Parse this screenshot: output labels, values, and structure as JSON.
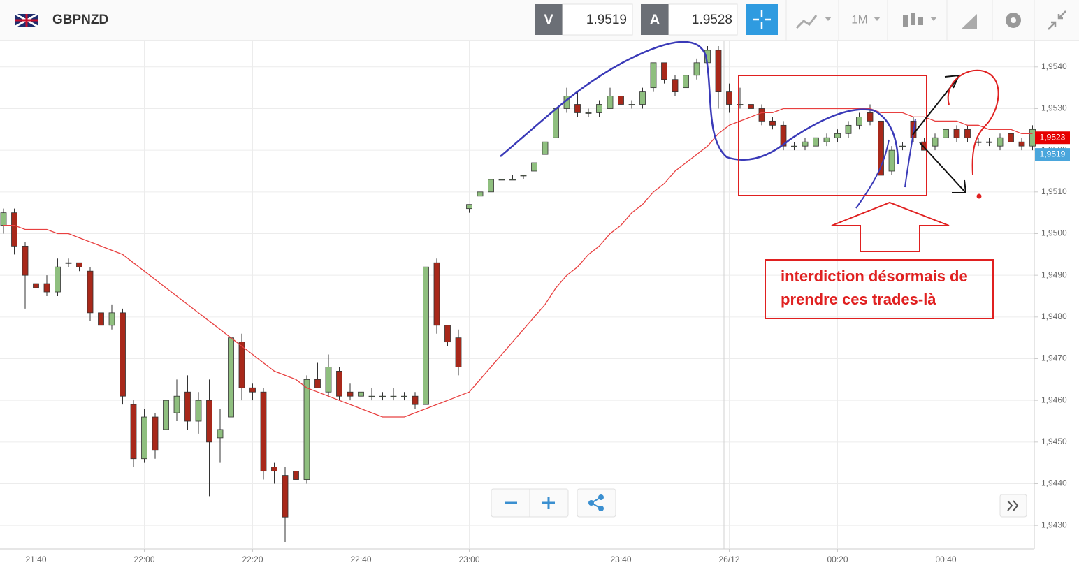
{
  "header": {
    "symbol": "GBPNZD",
    "bid_label": "V",
    "bid": "1.9519",
    "ask_label": "A",
    "ask": "1.9528",
    "timeframe": "1M"
  },
  "chart_data": {
    "type": "candlestick",
    "categories": [
      null,
      null,
      null,
      "21:40",
      null,
      null,
      null,
      null,
      null,
      null,
      null,
      null,
      null,
      "22:00",
      null,
      null,
      null,
      null,
      null,
      null,
      null,
      null,
      null,
      "22:20",
      null,
      null,
      null,
      null,
      null,
      null,
      null,
      null,
      null,
      "22:40",
      null,
      null,
      null,
      null,
      null,
      null,
      null,
      null,
      null,
      "23:00",
      null,
      null,
      null,
      null,
      null,
      null,
      null,
      null,
      null,
      null,
      null,
      null,
      null,
      "23:40",
      null,
      null,
      null,
      null,
      null,
      null,
      null,
      null,
      null,
      "26/12",
      null,
      null,
      null,
      null,
      null,
      null,
      null,
      null,
      null,
      "00:20",
      null,
      null,
      null,
      null,
      null,
      null,
      null,
      null,
      null,
      "00:40",
      null,
      null,
      null,
      null,
      null,
      null,
      null,
      null
    ],
    "candles": [
      [
        1.9502,
        1.9506,
        1.95,
        1.9505
      ],
      [
        1.9505,
        1.9506,
        1.9495,
        1.9497
      ],
      [
        1.9497,
        1.9498,
        1.9482,
        1.949
      ],
      [
        1.9488,
        1.949,
        1.9486,
        1.9487
      ],
      [
        1.9488,
        1.949,
        1.9485,
        1.9486
      ],
      [
        1.9486,
        1.9494,
        1.9485,
        1.9492
      ],
      [
        1.9493,
        1.9494,
        1.9492,
        1.9493
      ],
      [
        1.9493,
        1.9493,
        1.9491,
        1.9492
      ],
      [
        1.9491,
        1.9492,
        1.9479,
        1.9481
      ],
      [
        1.9481,
        1.9481,
        1.9477,
        1.9478
      ],
      [
        1.9478,
        1.9483,
        1.9477,
        1.9481
      ],
      [
        1.9481,
        1.9482,
        1.9459,
        1.9461
      ],
      [
        1.9459,
        1.946,
        1.9444,
        1.9446
      ],
      [
        1.9446,
        1.9458,
        1.9445,
        1.9456
      ],
      [
        1.9456,
        1.9457,
        1.9446,
        1.9448
      ],
      [
        1.9453,
        1.9464,
        1.9451,
        1.946
      ],
      [
        1.9457,
        1.9465,
        1.9455,
        1.9461
      ],
      [
        1.9462,
        1.9466,
        1.9453,
        1.9455
      ],
      [
        1.9455,
        1.9462,
        1.9452,
        1.946
      ],
      [
        1.946,
        1.9465,
        1.9437,
        1.945
      ],
      [
        1.9451,
        1.9458,
        1.9445,
        1.9453
      ],
      [
        1.9456,
        1.9489,
        1.9448,
        1.9475
      ],
      [
        1.9474,
        1.9476,
        1.946,
        1.9463
      ],
      [
        1.9463,
        1.9464,
        1.946,
        1.9462
      ],
      [
        1.9462,
        1.9463,
        1.9441,
        1.9443
      ],
      [
        1.9444,
        1.9445,
        1.944,
        1.9443
      ],
      [
        1.9442,
        1.9444,
        1.9426,
        1.9432
      ],
      [
        1.9443,
        1.9444,
        1.9439,
        1.9441
      ],
      [
        1.9441,
        1.9466,
        1.944,
        1.9465
      ],
      [
        1.9465,
        1.9469,
        1.9463,
        1.9463
      ],
      [
        1.9462,
        1.9471,
        1.9461,
        1.9468
      ],
      [
        1.9467,
        1.9468,
        1.946,
        1.9461
      ],
      [
        1.9462,
        1.9464,
        1.946,
        1.9461
      ],
      [
        1.9461,
        1.9463,
        1.946,
        1.9462
      ],
      [
        1.9461,
        1.9463,
        1.946,
        1.9461
      ],
      [
        1.9461,
        1.9462,
        1.946,
        1.9461
      ],
      [
        1.9461,
        1.9463,
        1.946,
        1.9461
      ],
      [
        1.9461,
        1.9462,
        1.946,
        1.9461
      ],
      [
        1.9461,
        1.9462,
        1.9458,
        1.9459
      ],
      [
        1.9459,
        1.9494,
        1.9458,
        1.9492
      ],
      [
        1.9493,
        1.9494,
        1.9476,
        1.9478
      ],
      [
        1.9478,
        1.9478,
        1.9473,
        1.9474
      ],
      [
        1.9475,
        1.9477,
        1.9466,
        1.9468
      ],
      [
        1.9506,
        1.9507,
        1.9505,
        1.9507
      ],
      [
        1.9509,
        1.951,
        1.9509,
        1.951
      ],
      [
        1.951,
        1.9513,
        1.9509,
        1.9513
      ],
      [
        1.9513,
        1.9513,
        1.9513,
        1.9513
      ],
      [
        1.9513,
        1.9514,
        1.9513,
        1.9513
      ],
      [
        1.9514,
        1.9514,
        1.9513,
        1.9514
      ],
      [
        1.9515,
        1.9517,
        1.9515,
        1.9517
      ],
      [
        1.9519,
        1.9522,
        1.9519,
        1.9522
      ],
      [
        1.9523,
        1.9531,
        1.9522,
        1.953
      ],
      [
        1.953,
        1.9535,
        1.9529,
        1.9533
      ],
      [
        1.9531,
        1.9534,
        1.9528,
        1.9529
      ],
      [
        1.9529,
        1.953,
        1.9528,
        1.9529
      ],
      [
        1.9529,
        1.9532,
        1.9528,
        1.9531
      ],
      [
        1.953,
        1.9535,
        1.953,
        1.9533
      ],
      [
        1.9533,
        1.9533,
        1.9531,
        1.9531
      ],
      [
        1.9531,
        1.9532,
        1.953,
        1.9531
      ],
      [
        1.9531,
        1.9535,
        1.953,
        1.9534
      ],
      [
        1.9535,
        1.9541,
        1.9534,
        1.9541
      ],
      [
        1.9541,
        1.9541,
        1.9536,
        1.9537
      ],
      [
        1.9537,
        1.9538,
        1.9533,
        1.9534
      ],
      [
        1.9535,
        1.9539,
        1.9534,
        1.9538
      ],
      [
        1.9538,
        1.9542,
        1.9537,
        1.9541
      ],
      [
        1.9541,
        1.9545,
        1.954,
        1.9544
      ],
      [
        1.9544,
        1.9545,
        1.953,
        1.9534
      ],
      [
        1.9534,
        1.9536,
        1.9529,
        1.9531
      ],
      [
        1.9531,
        1.9535,
        1.953,
        1.9531
      ],
      [
        1.9531,
        1.9532,
        1.9528,
        1.953
      ],
      [
        1.953,
        1.9531,
        1.9526,
        1.9527
      ],
      [
        1.9527,
        1.9528,
        1.9525,
        1.9526
      ],
      [
        1.9526,
        1.9527,
        1.952,
        1.9521
      ],
      [
        1.9521,
        1.9522,
        1.952,
        1.9521
      ],
      [
        1.9521,
        1.9523,
        1.952,
        1.9522
      ],
      [
        1.9521,
        1.9524,
        1.952,
        1.9523
      ],
      [
        1.9522,
        1.9524,
        1.9521,
        1.9523
      ],
      [
        1.9523,
        1.9525,
        1.9522,
        1.9524
      ],
      [
        1.9524,
        1.9527,
        1.9523,
        1.9526
      ],
      [
        1.9526,
        1.9529,
        1.9525,
        1.9528
      ],
      [
        1.9529,
        1.9531,
        1.9526,
        1.9527
      ],
      [
        1.9527,
        1.9528,
        1.9513,
        1.9514
      ],
      [
        1.9515,
        1.9521,
        1.9514,
        1.952
      ],
      [
        1.9521,
        1.9522,
        1.952,
        1.9521
      ],
      [
        1.9527,
        1.9528,
        1.9522,
        1.9523
      ],
      [
        1.9522,
        1.9523,
        1.952,
        1.952
      ],
      [
        1.9521,
        1.9524,
        1.952,
        1.9523
      ],
      [
        1.9523,
        1.9526,
        1.9522,
        1.9525
      ],
      [
        1.9525,
        1.9526,
        1.9522,
        1.9523
      ],
      [
        1.9525,
        1.9526,
        1.9522,
        1.9523
      ],
      [
        1.9522,
        1.9523,
        1.9521,
        1.9522
      ],
      [
        1.9522,
        1.9523,
        1.9521,
        1.9522
      ],
      [
        1.9521,
        1.9524,
        1.952,
        1.9523
      ],
      [
        1.9524,
        1.9525,
        1.9521,
        1.9522
      ],
      [
        1.9522,
        1.9523,
        1.952,
        1.9521
      ],
      [
        1.9521,
        1.9526,
        1.952,
        1.9525
      ]
    ],
    "up_color": "#8fbf7f",
    "down_color": "#a8281a",
    "ma": {
      "color": "#e84040",
      "values": [
        1.9502,
        1.9502,
        1.9501,
        1.9501,
        1.9501,
        1.95,
        1.95,
        1.9499,
        1.9498,
        1.9497,
        1.9496,
        1.9495,
        1.9493,
        1.9491,
        1.9489,
        1.9487,
        1.9485,
        1.9483,
        1.9481,
        1.9479,
        1.9477,
        1.9475,
        1.9473,
        1.9471,
        1.9469,
        1.9467,
        1.9466,
        1.9465,
        1.9463,
        1.9462,
        1.9461,
        1.946,
        1.9459,
        1.9458,
        1.9457,
        1.9456,
        1.9456,
        1.9456,
        1.9457,
        1.9458,
        1.9459,
        1.946,
        1.9461,
        1.9462,
        1.9465,
        1.9468,
        1.9471,
        1.9474,
        1.9477,
        1.948,
        1.9483,
        1.9487,
        1.949,
        1.9492,
        1.9495,
        1.9497,
        1.95,
        1.9502,
        1.9505,
        1.9507,
        1.951,
        1.9512,
        1.9515,
        1.9517,
        1.9519,
        1.9521,
        1.9524,
        1.9526,
        1.9527,
        1.9528,
        1.9529,
        1.9529,
        1.953,
        1.953,
        1.953,
        1.953,
        1.953,
        1.953,
        1.953,
        1.953,
        1.953,
        1.9529,
        1.9529,
        1.9529,
        1.9528,
        1.9528,
        1.9527,
        1.9527,
        1.9527,
        1.9526,
        1.9526,
        1.9525,
        1.9525,
        1.9525,
        1.9524,
        1.9524
      ]
    },
    "ylim": [
      1.94245,
      1.9546
    ],
    "yticks": [
      {
        "value": 1.943,
        "label": "1,9430"
      },
      {
        "value": 1.944,
        "label": "1,9440"
      },
      {
        "value": 1.945,
        "label": "1,9450"
      },
      {
        "value": 1.946,
        "label": "1,9460"
      },
      {
        "value": 1.947,
        "label": "1,9470"
      },
      {
        "value": 1.948,
        "label": "1,9480"
      },
      {
        "value": 1.949,
        "label": "1,9490"
      },
      {
        "value": 1.95,
        "label": "1,9500"
      },
      {
        "value": 1.951,
        "label": "1,9510"
      },
      {
        "value": 1.952,
        "label": "1,9520"
      },
      {
        "value": 1.953,
        "label": "1,9530"
      },
      {
        "value": 1.954,
        "label": "1,9540"
      }
    ],
    "price_tags": [
      {
        "value": 1.9523,
        "label": "1,9523",
        "color": "#e60000"
      },
      {
        "value": 1.9519,
        "label": "1,9519",
        "color": "#4aa6dc"
      }
    ],
    "grid": true,
    "annotation": [
      "interdiction désormais de",
      "prendre ces trades-là"
    ]
  }
}
